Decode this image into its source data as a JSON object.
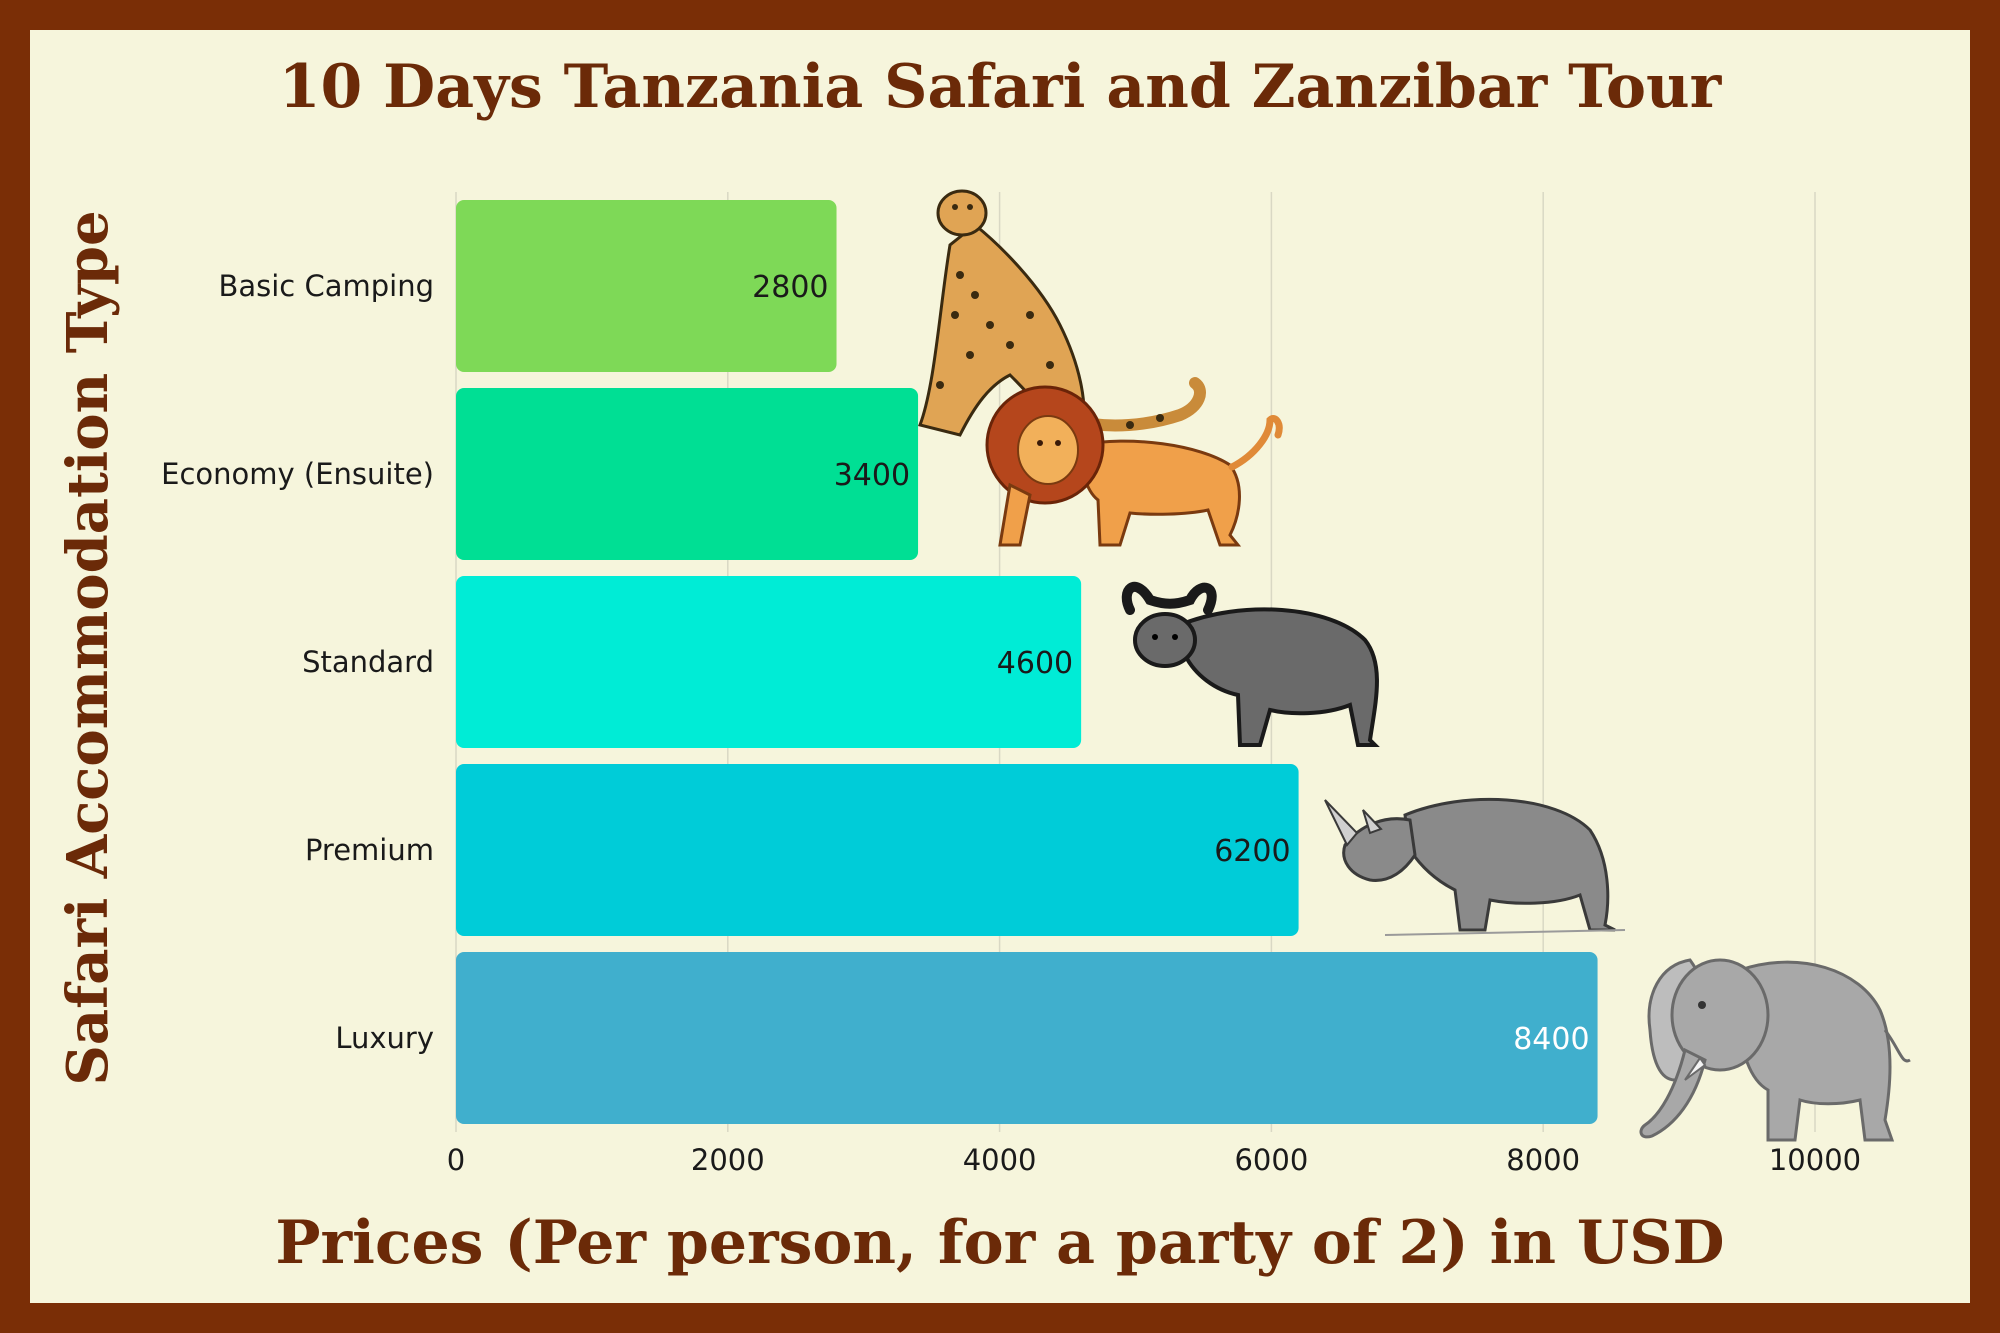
{
  "chart_data": {
    "type": "bar",
    "orientation": "horizontal",
    "title": "10 Days Tanzania Safari and Zanzibar Tour",
    "xlabel": "Prices (Per person, for a party of 2) in USD",
    "ylabel": "Safari Accommodation  Type",
    "categories": [
      "Basic Camping",
      "Economy (Ensuite)",
      "Standard",
      "Premium",
      "Luxury"
    ],
    "values": [
      2800,
      3400,
      4600,
      6200,
      8400
    ],
    "xlim": [
      0,
      10000
    ],
    "xticks": [
      0,
      2000,
      4000,
      6000,
      8000,
      10000
    ],
    "bar_colors": [
      "#7ed957",
      "#00df94",
      "#00ecd6",
      "#00ccd8",
      "#40afcd"
    ],
    "label_colors": [
      "#1a1a1a",
      "#1a1a1a",
      "#1a1a1a",
      "#1a1a1a",
      "#ffffff"
    ],
    "grid": "vertical",
    "illustrations": [
      "leopard-icon",
      "lion-icon",
      "buffalo-icon",
      "rhino-icon",
      "elephant-icon"
    ]
  },
  "colors": {
    "frame": "#7a2e06",
    "background": "#f6f5dc",
    "title": "#6b2a08",
    "grid": "#d9d8c4"
  }
}
